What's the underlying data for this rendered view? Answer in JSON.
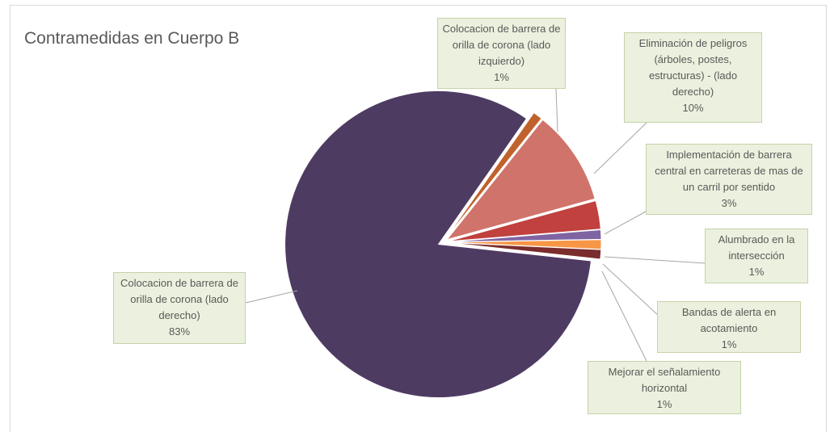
{
  "chart_data": {
    "type": "pie",
    "title": "Contramedidas en Cuerpo B",
    "categories": [
      "Colocacion de barrera de orilla de corona (lado izquierdo)",
      "Eliminación de peligros (árboles, postes, estructuras) - (lado derecho)",
      "Implementación de barrera central en carreteras de mas de un carril por sentido",
      "Alumbrado en la intersección",
      "Bandas de alerta en acotamiento",
      "Mejorar el señalamiento horizontal",
      "Colocacion de barrera de orilla  de corona (lado derecho)"
    ],
    "values": [
      1,
      10,
      3,
      1,
      1,
      1,
      83
    ],
    "value_labels": [
      "1%",
      "10%",
      "3%",
      "1%",
      "1%",
      "1%",
      "83%"
    ],
    "colors": [
      "#c0622b",
      "#d0736b",
      "#c0413e",
      "#8064a2",
      "#f79646",
      "#7b2c2c",
      "#4e3b62"
    ]
  }
}
